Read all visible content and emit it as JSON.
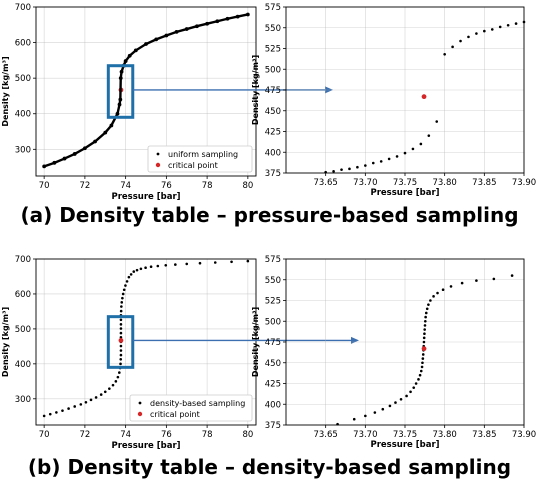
{
  "captions": {
    "a": "(a) Density table – pressure-based sampling",
    "b": "(b) Density table – density-based sampling"
  },
  "colors": {
    "sample": "#000000",
    "critical": "#d62728",
    "highlight_box": "#1f6fa8",
    "arrow": "#3b6fb0",
    "grid": "#b0b0b0"
  },
  "chart_data": [
    {
      "id": "a-full",
      "type": "scatter",
      "xlabel": "Pressure [bar]",
      "ylabel": "Density [kg/m³]",
      "xlim": [
        69.6,
        80.4
      ],
      "ylim": [
        225,
        700
      ],
      "xticks": [
        70,
        72,
        74,
        76,
        78,
        80
      ],
      "yticks": [
        300,
        400,
        500,
        600,
        700
      ],
      "grid": true,
      "legend": {
        "placement": "lower-right",
        "entries": [
          "uniform sampling",
          "critical point"
        ]
      },
      "series": [
        {
          "name": "uniform sampling",
          "marker": "dot",
          "x": [
            70.0,
            70.5,
            71.0,
            71.5,
            72.0,
            72.5,
            73.0,
            73.3,
            73.6,
            73.7,
            73.74,
            73.76,
            73.8,
            73.9,
            74.0,
            74.2,
            74.5,
            75.0,
            75.5,
            76.0,
            76.5,
            77.0,
            77.5,
            78.0,
            78.5,
            79.0,
            79.5,
            80.0
          ],
          "y": [
            252,
            262,
            274,
            287,
            303,
            322,
            347,
            367,
            400,
            426,
            440,
            500,
            518,
            535,
            548,
            563,
            578,
            596,
            609,
            620,
            630,
            638,
            646,
            653,
            660,
            667,
            673,
            679
          ]
        },
        {
          "name": "critical point",
          "marker": "dot",
          "x": [
            73.77
          ],
          "y": [
            467
          ]
        }
      ]
    },
    {
      "id": "a-zoom",
      "type": "scatter",
      "xlabel": "Pressure [bar]",
      "ylabel": "Density [kg/m³]",
      "xlim": [
        73.6,
        73.9
      ],
      "ylim": [
        375,
        575
      ],
      "xticks": [
        73.65,
        73.7,
        73.75,
        73.8,
        73.85,
        73.9
      ],
      "yticks": [
        375,
        400,
        425,
        450,
        475,
        500,
        525,
        550,
        575
      ],
      "grid": true,
      "series": [
        {
          "name": "uniform sampling",
          "marker": "dot",
          "x": [
            73.65,
            73.66,
            73.67,
            73.68,
            73.69,
            73.7,
            73.71,
            73.72,
            73.73,
            73.74,
            73.75,
            73.76,
            73.77,
            73.78,
            73.79,
            73.8,
            73.81,
            73.82,
            73.83,
            73.84,
            73.85,
            73.86,
            73.87,
            73.88,
            73.89,
            73.9
          ],
          "y": [
            376,
            377,
            379,
            380,
            382,
            384,
            387,
            389,
            392,
            395,
            399,
            404,
            410,
            420,
            437,
            518,
            527,
            534,
            539,
            543,
            546,
            548,
            551,
            553,
            555,
            557
          ]
        },
        {
          "name": "critical point",
          "marker": "dot",
          "x": [
            73.774
          ],
          "y": [
            467
          ]
        }
      ]
    },
    {
      "id": "b-full",
      "type": "scatter",
      "xlabel": "Pressure [bar]",
      "ylabel": "Density [kg/m³]",
      "xlim": [
        69.6,
        80.4
      ],
      "ylim": [
        225,
        700
      ],
      "xticks": [
        70,
        72,
        74,
        76,
        78,
        80
      ],
      "yticks": [
        300,
        400,
        500,
        600,
        700
      ],
      "grid": true,
      "legend": {
        "placement": "lower-right",
        "entries": [
          "density-based sampling",
          "critical point"
        ]
      },
      "series": [
        {
          "name": "density-based sampling",
          "marker": "dot",
          "x": [
            70.0,
            70.3,
            70.6,
            70.9,
            71.2,
            71.5,
            71.8,
            72.05,
            72.3,
            72.55,
            72.8,
            73.0,
            73.2,
            73.38,
            73.52,
            73.62,
            73.69,
            73.73,
            73.75,
            73.76,
            73.77,
            73.77,
            73.77,
            73.77,
            73.77,
            73.77,
            73.77,
            73.77,
            73.77,
            73.77,
            73.78,
            73.79,
            73.81,
            73.84,
            73.88,
            73.93,
            73.99,
            74.07,
            74.16,
            74.27,
            74.4,
            74.56,
            74.75,
            74.98,
            75.25,
            75.58,
            75.97,
            76.44,
            77.0,
            77.65,
            78.4,
            79.2,
            80.0
          ],
          "y": [
            251,
            256,
            261,
            266,
            272,
            278,
            284,
            290,
            297,
            304,
            312,
            320,
            329,
            339,
            350,
            362,
            375,
            388,
            400,
            413,
            425,
            438,
            451,
            463,
            476,
            488,
            501,
            513,
            526,
            539,
            551,
            564,
            576,
            588,
            600,
            612,
            624,
            636,
            648,
            656,
            664,
            668,
            672,
            675,
            678,
            680,
            682,
            684,
            686,
            688,
            690,
            692,
            694
          ]
        },
        {
          "name": "critical point",
          "marker": "dot",
          "x": [
            73.77
          ],
          "y": [
            467
          ]
        }
      ]
    },
    {
      "id": "b-zoom",
      "type": "scatter",
      "xlabel": "Pressure [bar]",
      "ylabel": "Density [kg/m³]",
      "xlim": [
        73.6,
        73.9
      ],
      "ylim": [
        375,
        575
      ],
      "xticks": [
        73.65,
        73.7,
        73.75,
        73.8,
        73.85,
        73.9
      ],
      "yticks": [
        375,
        400,
        425,
        450,
        475,
        500,
        525,
        550,
        575
      ],
      "grid": true,
      "series": [
        {
          "name": "density-based sampling",
          "marker": "dot",
          "x": [
            73.665,
            73.686,
            73.7,
            73.712,
            73.722,
            73.731,
            73.738,
            73.745,
            73.752,
            73.757,
            73.761,
            73.764,
            73.767,
            73.769,
            73.7705,
            73.7715,
            73.772,
            73.7725,
            73.773,
            73.7733,
            73.7736,
            73.7739,
            73.7742,
            73.7745,
            73.7748,
            73.7752,
            73.7756,
            73.776,
            73.7768,
            73.778,
            73.7795,
            73.782,
            73.786,
            73.791,
            73.798,
            73.808,
            73.822,
            73.84,
            73.862,
            73.885
          ],
          "y": [
            376,
            382,
            386,
            390,
            394,
            398,
            402,
            406,
            410,
            415,
            420,
            425,
            430,
            435,
            440,
            445,
            450,
            455,
            460,
            465,
            470,
            475,
            480,
            485,
            490,
            495,
            500,
            505,
            510,
            515,
            520,
            525,
            530,
            534,
            538,
            542,
            546,
            549,
            551,
            555
          ]
        },
        {
          "name": "critical point",
          "marker": "dot",
          "x": [
            73.774
          ],
          "y": [
            467
          ]
        }
      ]
    }
  ]
}
